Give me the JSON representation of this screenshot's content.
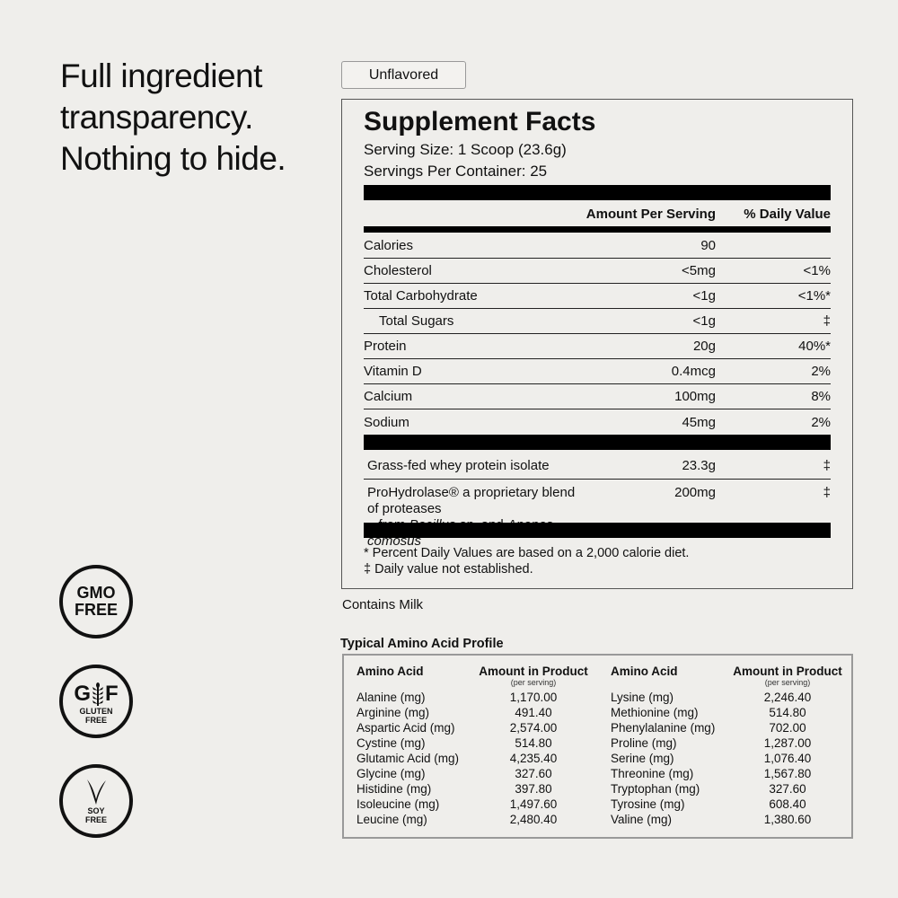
{
  "headline": "Full ingredient\ntransparency.\nNothing to hide.",
  "flavor": "Unflavored",
  "facts": {
    "title": "Supplement Facts",
    "serving_size": "Serving Size: 1 Scoop (23.6g)",
    "servings": "Servings Per Container: 25",
    "col_amount": "Amount Per Serving",
    "col_dv": "% Daily Value",
    "rows": [
      {
        "name": "Calories",
        "amount": "90",
        "dv": ""
      },
      {
        "name": "Cholesterol",
        "amount": "<5mg",
        "dv": "<1%"
      },
      {
        "name": "Total Carbohydrate",
        "amount": "<1g",
        "dv": "<1%*"
      },
      {
        "name": "Total Sugars",
        "amount": "<1g",
        "dv": "‡"
      },
      {
        "name": "Protein",
        "amount": "20g",
        "dv": "40%*"
      },
      {
        "name": "Vitamin D",
        "amount": "0.4mcg",
        "dv": "2%"
      },
      {
        "name": "Calcium",
        "amount": "100mg",
        "dv": "8%"
      },
      {
        "name": "Sodium",
        "amount": "45mg",
        "dv": "2%"
      }
    ],
    "ingredients": [
      {
        "name": "Grass-fed whey protein isolate",
        "amount": "23.3g",
        "dv": "‡"
      },
      {
        "name": "ProHydrolase® a proprietary blend of proteases",
        "line2a": "from ",
        "line2b": "Bacillus sp.",
        "line2c": " and ",
        "line2d": "Ananas comosus",
        "amount": "200mg",
        "dv": "‡"
      }
    ],
    "footnote1": "* Percent Daily Values are based on a 2,000 calorie diet.",
    "footnote2": "‡ Daily value not established."
  },
  "contains": "Contains Milk",
  "amino": {
    "title": "Typical Amino Acid Profile",
    "h_acid": "Amino Acid",
    "h_amount": "Amount in Product",
    "h_per": "(per serving)",
    "left": [
      [
        "Alanine (mg)",
        "1,170.00"
      ],
      [
        "Arginine (mg)",
        "491.40"
      ],
      [
        "Aspartic Acid (mg)",
        "2,574.00"
      ],
      [
        "Cystine (mg)",
        "514.80"
      ],
      [
        "Glutamic Acid (mg)",
        "4,235.40"
      ],
      [
        "Glycine (mg)",
        "327.60"
      ],
      [
        "Histidine (mg)",
        "397.80"
      ],
      [
        "Isoleucine (mg)",
        "1,497.60"
      ],
      [
        "Leucine (mg)",
        "2,480.40"
      ]
    ],
    "right": [
      [
        "Lysine (mg)",
        "2,246.40"
      ],
      [
        "Methionine (mg)",
        "514.80"
      ],
      [
        "Phenylalanine (mg)",
        "702.00"
      ],
      [
        "Proline (mg)",
        "1,287.00"
      ],
      [
        "Serine (mg)",
        "1,076.40"
      ],
      [
        "Threonine (mg)",
        "1,567.80"
      ],
      [
        "Tryptophan (mg)",
        "327.60"
      ],
      [
        "Tyrosine (mg)",
        "608.40"
      ],
      [
        "Valine (mg)",
        "1,380.60"
      ]
    ]
  },
  "badges": {
    "gmo": "GMO\nFREE",
    "gf_g": "G",
    "gf_f": "F",
    "gf_text": "GLUTEN\nFREE",
    "soy": "SOY\nFREE"
  }
}
